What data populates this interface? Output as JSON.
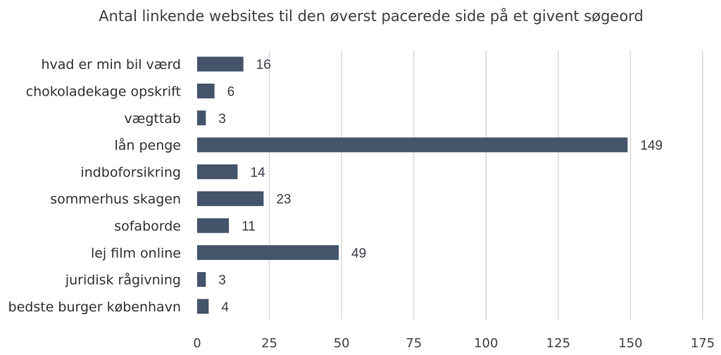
{
  "chart_data": {
    "type": "bar",
    "orientation": "horizontal",
    "title": "Antal linkende websites til den øverst pacerede side på et givent søgeord",
    "categories": [
      "hvad er min bil værd",
      "chokoladekage opskrift",
      "vægttab",
      "lån penge",
      "indboforsikring",
      "sommerhus skagen",
      "sofaborde",
      "lej film online",
      "juridisk rågivning",
      "bedste burger københavn"
    ],
    "values": [
      16,
      6,
      3,
      149,
      14,
      23,
      11,
      49,
      3,
      4
    ],
    "xlim": [
      0,
      175
    ],
    "xticks": [
      0,
      25,
      50,
      75,
      100,
      125,
      150,
      175
    ],
    "grid": true,
    "bar_color": "#44546a",
    "data_labels": true
  }
}
